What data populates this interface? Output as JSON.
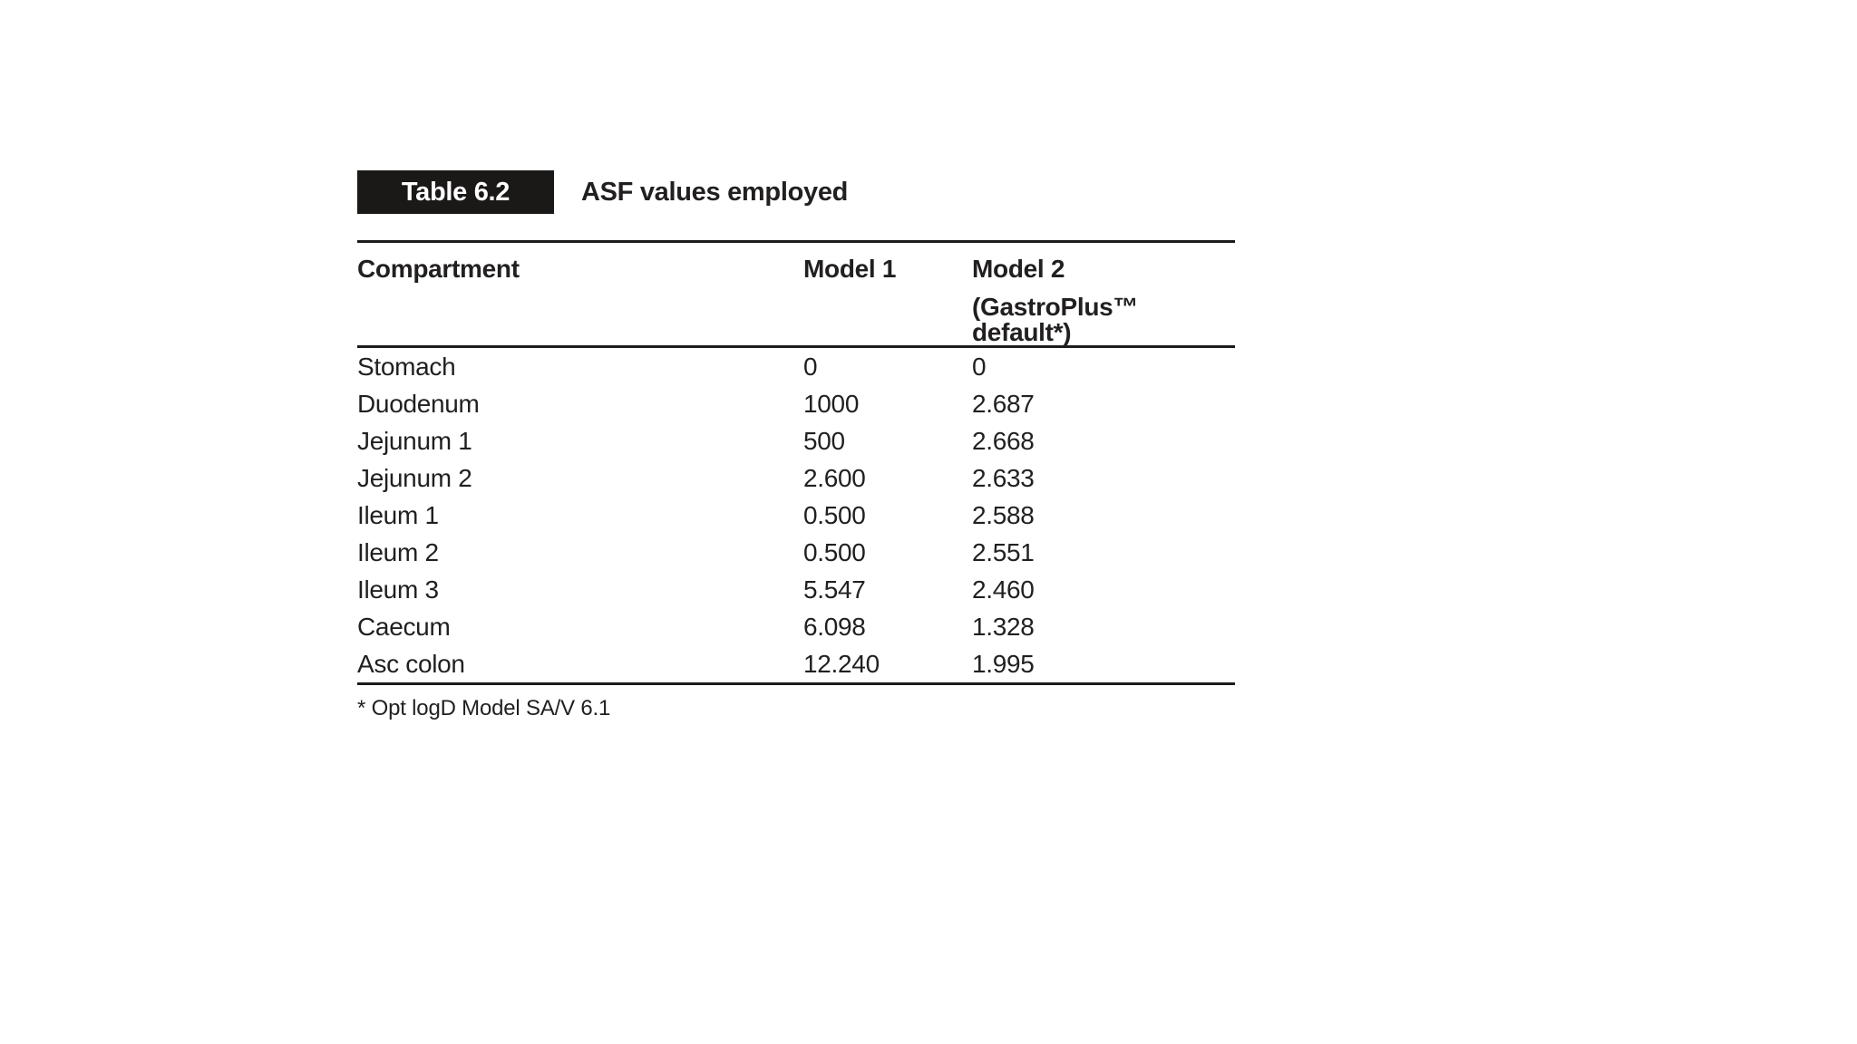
{
  "figure": {
    "label": "Table 6.2",
    "title": "ASF values employed",
    "columns": {
      "compartment": "Compartment",
      "model1": "Model 1",
      "model2": "Model 2",
      "model2_sub": "(GastroPlus™ default*)"
    },
    "rows": [
      {
        "compartment": "Stomach",
        "model1": "0",
        "model2": "0"
      },
      {
        "compartment": "Duodenum",
        "model1": "1000",
        "model2": "2.687"
      },
      {
        "compartment": "Jejunum 1",
        "model1": "500",
        "model2": "2.668"
      },
      {
        "compartment": "Jejunum 2",
        "model1": "2.600",
        "model2": "2.633"
      },
      {
        "compartment": "Ileum 1",
        "model1": "0.500",
        "model2": "2.588"
      },
      {
        "compartment": "Ileum 2",
        "model1": "0.500",
        "model2": "2.551"
      },
      {
        "compartment": "Ileum 3",
        "model1": "5.547",
        "model2": "2.460"
      },
      {
        "compartment": "Caecum",
        "model1": "6.098",
        "model2": "1.328"
      },
      {
        "compartment": "Asc colon",
        "model1": "12.240",
        "model2": "1.995"
      }
    ],
    "footnote": "* Opt logD Model SA/V 6.1"
  },
  "colors": {
    "background": "#ffffff",
    "badge_bg": "#1b1918",
    "badge_text": "#ffffff",
    "text": "#221f20",
    "rule": "#1c1c1c"
  },
  "chart_data": {
    "type": "table",
    "title": "Table 6.2 ASF values employed",
    "columns": [
      "Compartment",
      "Model 1",
      "Model 2 (GastroPlus™ default*)"
    ],
    "rows": [
      [
        "Stomach",
        "0",
        "0"
      ],
      [
        "Duodenum",
        "1000",
        "2.687"
      ],
      [
        "Jejunum 1",
        "500",
        "2.668"
      ],
      [
        "Jejunum 2",
        "2.600",
        "2.633"
      ],
      [
        "Ileum 1",
        "0.500",
        "2.588"
      ],
      [
        "Ileum 2",
        "0.500",
        "2.551"
      ],
      [
        "Ileum 3",
        "5.547",
        "2.460"
      ],
      [
        "Caecum",
        "6.098",
        "1.328"
      ],
      [
        "Asc colon",
        "12.240",
        "1.995"
      ]
    ],
    "footnote": "* Opt logD Model SA/V 6.1"
  }
}
